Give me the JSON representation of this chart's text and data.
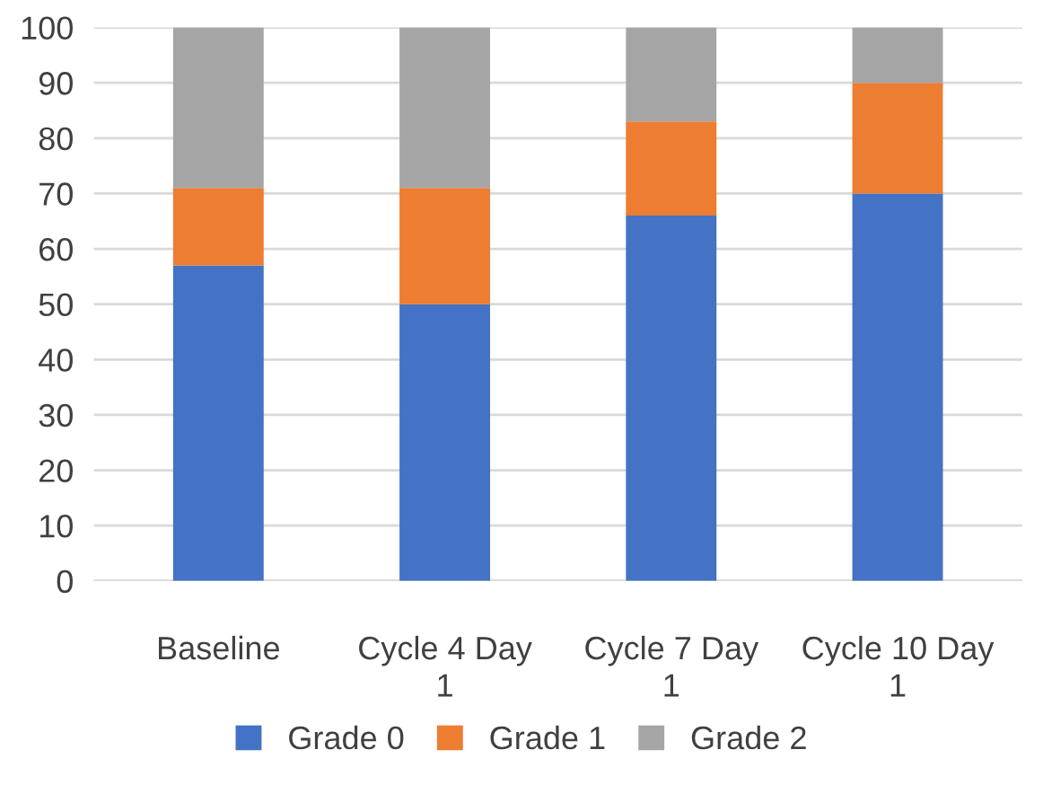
{
  "chart_data": {
    "type": "bar",
    "stacked": true,
    "categories": [
      "Baseline",
      "Cycle 4 Day 1",
      "Cycle 7 Day 1",
      "Cycle 10 Day 1"
    ],
    "series": [
      {
        "name": "Grade 0",
        "color": "#4472c4",
        "values": [
          57,
          50,
          66,
          70
        ]
      },
      {
        "name": "Grade 1",
        "color": "#ed7d31",
        "values": [
          14,
          21,
          17,
          20
        ]
      },
      {
        "name": "Grade 2",
        "color": "#a5a5a5",
        "values": [
          29,
          29,
          17,
          10
        ]
      }
    ],
    "ylim": [
      0,
      100
    ],
    "yticks": [
      0,
      10,
      20,
      30,
      40,
      50,
      60,
      70,
      80,
      90,
      100
    ],
    "grid": "y",
    "legend": "bottom"
  }
}
